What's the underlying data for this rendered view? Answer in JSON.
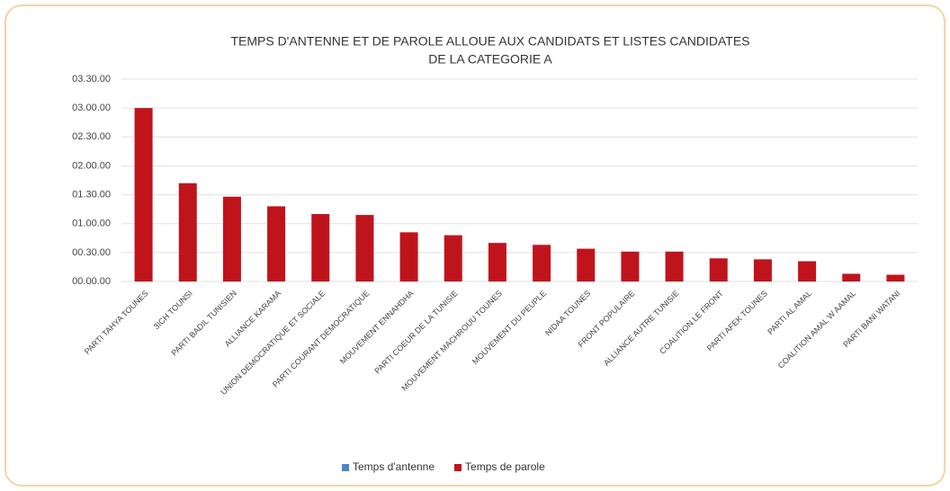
{
  "chart_data": {
    "type": "bar",
    "title": [
      "TEMPS D'ANTENNE ET DE PAROLE ALLOUE AUX CANDIDATS ET LISTES CANDIDATES",
      "DE LA CATEGORIE A"
    ],
    "categories": [
      "PARTI TAHYA TOUNES",
      "3ICH TOUNSI",
      "PARTI BADIL TUNISIEN",
      "ALLIANCE KARAMA",
      "UNION DEMOCRATIQUE ET SOCIALE",
      "PARTI COURANT DEMOCRATIQUE",
      "MOUVEMENT ENNAHDHA",
      "PARTI COEUR DE LA TUNISIE",
      "MOUVEMENT MACHROUU TOUNES",
      "MOUVEMENT DU PEUPLE",
      "NIDAA TOUNES",
      "FRONT POPULAIRE",
      "ALLIANCE AUTRE TUNISIE",
      "COALITION LE FRONT",
      "PARTI AFEK TOUNES",
      "PARTI AL AMAL",
      "COALITION AMAL W AAMAL",
      "PARTI BANI WATANI"
    ],
    "series": [
      {
        "name": "Temps d'antenne",
        "color": "#4a86c8",
        "values": [
          null,
          null,
          null,
          null,
          null,
          null,
          null,
          null,
          null,
          null,
          null,
          null,
          null,
          null,
          null,
          null,
          null,
          null
        ]
      },
      {
        "name": "Temps de parole",
        "color": "#c0141c",
        "values": [
          180,
          102,
          88,
          78,
          70,
          69,
          51,
          48,
          40,
          38,
          34,
          31,
          31,
          24,
          23,
          21,
          8,
          7
        ]
      }
    ],
    "ylim": [
      0,
      210
    ],
    "yticks": [
      {
        "value": 0,
        "label": "00.00.00"
      },
      {
        "value": 30,
        "label": "00.30.00"
      },
      {
        "value": 60,
        "label": "01.00.00"
      },
      {
        "value": 90,
        "label": "01.30.00"
      },
      {
        "value": 120,
        "label": "02.00.00"
      },
      {
        "value": 150,
        "label": "02.30.00"
      },
      {
        "value": 180,
        "label": "03.00.00"
      },
      {
        "value": 210,
        "label": "03.30.00"
      }
    ],
    "grid": true,
    "legend": "bottom"
  }
}
